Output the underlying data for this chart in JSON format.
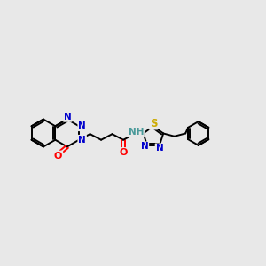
{
  "background_color": "#e8e8e8",
  "fig_width": 3.0,
  "fig_height": 3.0,
  "dpi": 100,
  "atom_colors": {
    "C": "#000000",
    "N": "#0000cc",
    "O": "#ff0000",
    "S": "#ccaa00",
    "H": "#4a9a9a"
  },
  "bond_color": "#000000",
  "bond_width": 1.4,
  "font_size": 7.5,
  "xlim": [
    0,
    10
  ],
  "ylim": [
    2,
    8
  ]
}
